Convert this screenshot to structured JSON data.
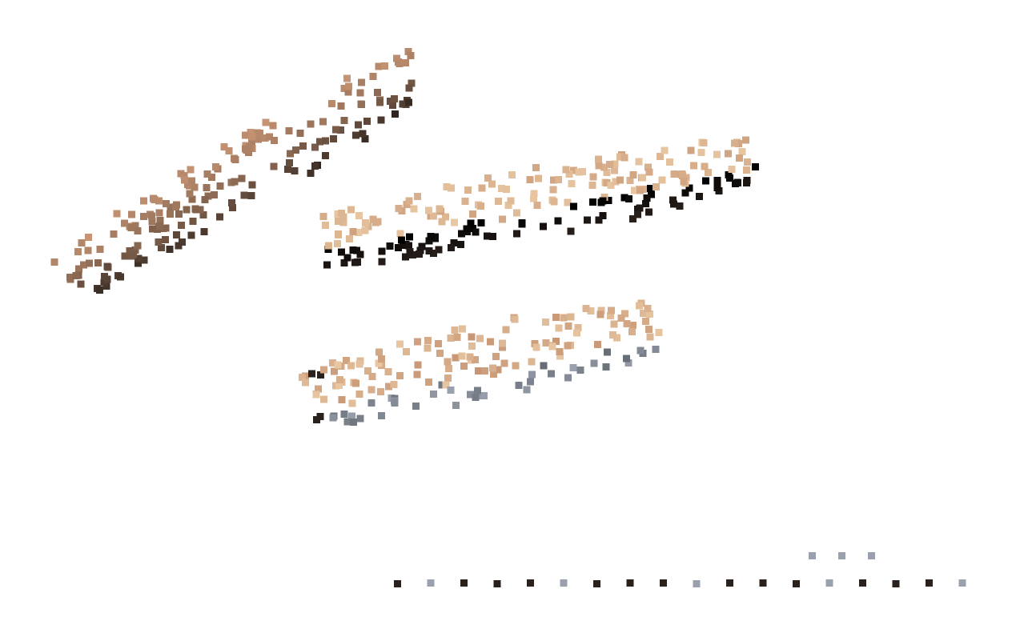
{
  "scene": {
    "background": "#ffffff",
    "description_name": "scattered-square-dot-point-cloud",
    "palette": {
      "skin_light": "#e8c7a2",
      "skin_mid": "#c79574",
      "skin_dark": "#8a6448",
      "shadow": "#2a211c",
      "gray_blue": "#9aa0ad",
      "cool_shadow": "#4d5358"
    },
    "clusters": [
      {
        "name": "upper-left-dotted-ribbon",
        "color_profile": "brown-gradient"
      },
      {
        "name": "center-right-dotted-ribbon",
        "color_profile": "tan-to-shadow-gradient"
      },
      {
        "name": "lower-center-dotted-ribbon",
        "color_profile": "peach-to-cool-gray-gradient"
      },
      {
        "name": "bottom-dotted-line",
        "color_profile": "gray-dots"
      }
    ]
  }
}
